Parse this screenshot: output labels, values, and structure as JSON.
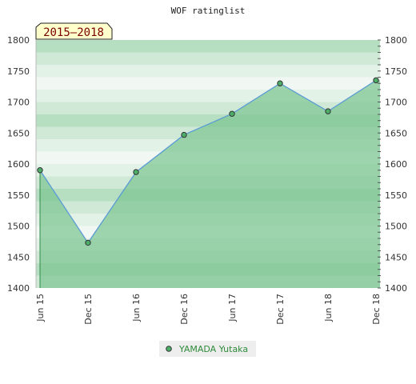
{
  "chart_data": {
    "type": "area",
    "title": "WOF ratinglist",
    "badge": "2015–2018",
    "categories": [
      "Jun 15",
      "Dec 15",
      "Jun 16",
      "Dec 16",
      "Jun 17",
      "Dec 17",
      "Jun 18",
      "Dec 18"
    ],
    "series": [
      {
        "name": "YAMADA Yutaka",
        "values": [
          1590,
          1473,
          1587,
          1647,
          1681,
          1730,
          1685,
          1735
        ]
      }
    ],
    "ylim": [
      1400,
      1800
    ],
    "yticks": [
      1400,
      1450,
      1500,
      1550,
      1600,
      1650,
      1700,
      1750,
      1800
    ],
    "grid": false,
    "legend": "bottom",
    "colors": {
      "fill": "#7dc592",
      "line": "#5b9bd5",
      "marker": "#4cae68",
      "badge_bg": "#ffffcc",
      "legend_bg": "#eeeeee"
    }
  }
}
